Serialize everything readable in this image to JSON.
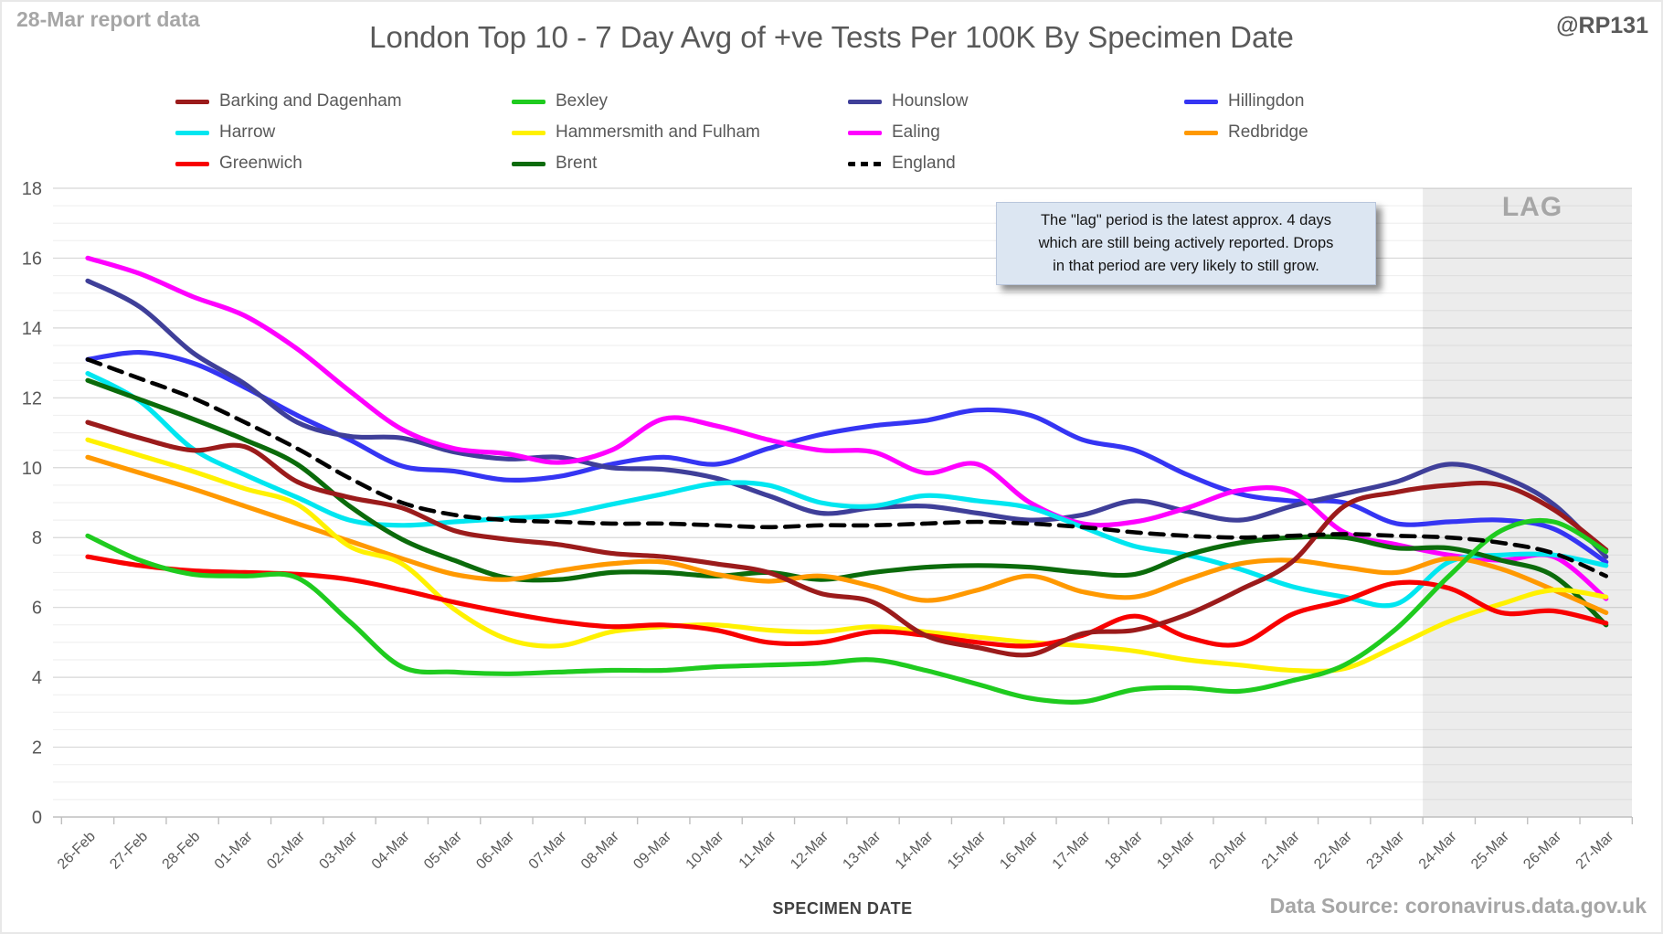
{
  "report_label": "28-Mar report data",
  "watermark": "@RP131",
  "footer_source": "Data Source: coronavirus.data.gov.uk",
  "lag_label": "LAG",
  "annotation": {
    "line1": "The \"lag\" period is the latest approx. 4 days",
    "line2": "which are still being actively reported.  Drops",
    "line3": "in that period are very likely to still grow."
  },
  "chart_data": {
    "type": "line",
    "title": "London Top 10 - 7 Day Avg of +ve Tests Per 100K By Specimen Date",
    "xlabel": "SPECIMEN DATE",
    "ylabel": "",
    "ylim": [
      0,
      18
    ],
    "y_major_tick": 2,
    "y_minor_tick": 0.5,
    "grid": true,
    "legend_position": "top",
    "lag_region": {
      "label": "LAG",
      "start_category": "24-Mar",
      "days_covered": 4
    },
    "categories": [
      "26-Feb",
      "27-Feb",
      "28-Feb",
      "01-Mar",
      "02-Mar",
      "03-Mar",
      "04-Mar",
      "05-Mar",
      "06-Mar",
      "07-Mar",
      "08-Mar",
      "09-Mar",
      "10-Mar",
      "11-Mar",
      "12-Mar",
      "13-Mar",
      "14-Mar",
      "15-Mar",
      "16-Mar",
      "17-Mar",
      "18-Mar",
      "19-Mar",
      "20-Mar",
      "21-Mar",
      "22-Mar",
      "23-Mar",
      "24-Mar",
      "25-Mar",
      "26-Mar",
      "27-Mar"
    ],
    "series": [
      {
        "name": "Barking and Dagenham",
        "color": "#9B1B1B",
        "dashed": false,
        "values": [
          11.3,
          10.85,
          10.5,
          10.6,
          9.6,
          9.15,
          8.85,
          8.2,
          7.95,
          7.8,
          7.55,
          7.45,
          7.25,
          7.0,
          6.4,
          6.15,
          5.2,
          4.85,
          4.65,
          5.25,
          5.35,
          5.8,
          6.5,
          7.3,
          8.9,
          9.3,
          9.5,
          9.5,
          8.8,
          7.65
        ]
      },
      {
        "name": "Bexley",
        "color": "#1FCB1F",
        "dashed": false,
        "values": [
          8.05,
          7.35,
          6.95,
          6.9,
          6.85,
          5.6,
          4.3,
          4.15,
          4.1,
          4.15,
          4.2,
          4.2,
          4.3,
          4.35,
          4.4,
          4.5,
          4.2,
          3.8,
          3.4,
          3.3,
          3.65,
          3.7,
          3.6,
          3.9,
          4.35,
          5.4,
          6.9,
          8.2,
          8.45,
          7.6
        ]
      },
      {
        "name": "Hounslow",
        "color": "#3F3F99",
        "dashed": false,
        "values": [
          15.35,
          14.6,
          13.3,
          12.4,
          11.3,
          10.9,
          10.85,
          10.45,
          10.25,
          10.3,
          10.0,
          9.95,
          9.7,
          9.2,
          8.7,
          8.85,
          8.9,
          8.7,
          8.5,
          8.65,
          9.05,
          8.75,
          8.5,
          8.9,
          9.25,
          9.6,
          10.1,
          9.75,
          8.95,
          7.45
        ]
      },
      {
        "name": "Hillingdon",
        "color": "#3535F3",
        "dashed": false,
        "values": [
          13.1,
          13.3,
          13.0,
          12.3,
          11.5,
          10.8,
          10.05,
          9.9,
          9.65,
          9.75,
          10.1,
          10.3,
          10.1,
          10.55,
          10.95,
          11.2,
          11.35,
          11.65,
          11.5,
          10.8,
          10.5,
          9.8,
          9.25,
          9.05,
          9.0,
          8.4,
          8.45,
          8.5,
          8.25,
          7.3
        ]
      },
      {
        "name": "Harrow",
        "color": "#00E6F0",
        "dashed": false,
        "values": [
          12.7,
          11.9,
          10.55,
          9.8,
          9.15,
          8.5,
          8.35,
          8.45,
          8.55,
          8.65,
          8.95,
          9.25,
          9.55,
          9.5,
          9.0,
          8.9,
          9.2,
          9.05,
          8.85,
          8.3,
          7.75,
          7.5,
          7.1,
          6.6,
          6.3,
          6.1,
          7.3,
          7.5,
          7.5,
          7.2
        ]
      },
      {
        "name": "Hammersmith and Fulham",
        "color": "#FFF100",
        "dashed": false,
        "values": [
          10.8,
          10.35,
          9.9,
          9.4,
          8.95,
          7.75,
          7.25,
          5.95,
          5.1,
          4.9,
          5.3,
          5.45,
          5.5,
          5.35,
          5.3,
          5.45,
          5.3,
          5.15,
          5.0,
          4.9,
          4.75,
          4.5,
          4.35,
          4.2,
          4.25,
          4.9,
          5.6,
          6.1,
          6.5,
          6.3
        ]
      },
      {
        "name": "Ealing",
        "color": "#FF00FF",
        "dashed": false,
        "values": [
          16.0,
          15.55,
          14.9,
          14.35,
          13.4,
          12.2,
          11.1,
          10.55,
          10.4,
          10.15,
          10.5,
          11.4,
          11.2,
          10.8,
          10.5,
          10.45,
          9.85,
          10.1,
          9.0,
          8.4,
          8.45,
          8.85,
          9.35,
          9.3,
          8.15,
          7.8,
          7.5,
          7.35,
          7.45,
          6.25
        ]
      },
      {
        "name": "Redbridge",
        "color": "#FF9900",
        "dashed": false,
        "values": [
          10.3,
          9.85,
          9.4,
          8.9,
          8.4,
          7.9,
          7.4,
          6.95,
          6.8,
          7.05,
          7.25,
          7.3,
          6.95,
          6.75,
          6.9,
          6.6,
          6.2,
          6.5,
          6.9,
          6.45,
          6.3,
          6.8,
          7.25,
          7.35,
          7.15,
          7.0,
          7.4,
          7.1,
          6.5,
          5.85
        ]
      },
      {
        "name": "Greenwich",
        "color": "#F80000",
        "dashed": false,
        "values": [
          7.45,
          7.2,
          7.05,
          7.0,
          6.95,
          6.8,
          6.5,
          6.15,
          5.85,
          5.6,
          5.45,
          5.5,
          5.35,
          5.0,
          5.0,
          5.3,
          5.2,
          5.0,
          4.9,
          5.2,
          5.75,
          5.15,
          4.95,
          5.8,
          6.2,
          6.7,
          6.55,
          5.85,
          5.9,
          5.55
        ]
      },
      {
        "name": "Brent",
        "color": "#0B6B0B",
        "dashed": false,
        "values": [
          12.5,
          11.95,
          11.4,
          10.8,
          10.1,
          8.9,
          7.95,
          7.35,
          6.85,
          6.8,
          7.0,
          7.0,
          6.9,
          7.0,
          6.8,
          7.0,
          7.15,
          7.2,
          7.15,
          7.0,
          6.95,
          7.5,
          7.85,
          8.0,
          8.0,
          7.7,
          7.7,
          7.35,
          6.9,
          5.5
        ]
      },
      {
        "name": "England",
        "color": "#000000",
        "dashed": true,
        "values": [
          13.1,
          12.55,
          12.0,
          11.3,
          10.55,
          9.7,
          9.0,
          8.65,
          8.5,
          8.45,
          8.4,
          8.4,
          8.35,
          8.3,
          8.35,
          8.35,
          8.4,
          8.45,
          8.4,
          8.3,
          8.15,
          8.05,
          8.0,
          8.05,
          8.1,
          8.05,
          8.0,
          7.85,
          7.55,
          6.9
        ]
      }
    ]
  }
}
